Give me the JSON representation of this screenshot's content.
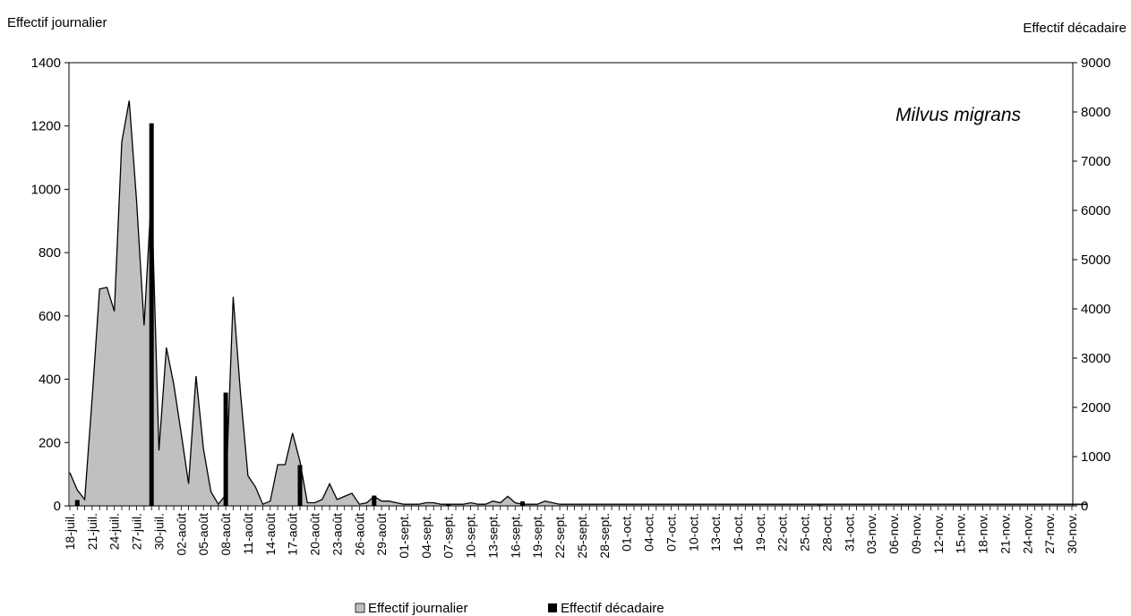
{
  "chart_data": {
    "type": "area",
    "annotation": "Milvus migrans",
    "left_axis_title": "Effectif journalier",
    "right_axis_title": "Effectif décadaire",
    "y_left_range": [
      0,
      1400
    ],
    "y_left_ticks": [
      "0",
      "200",
      "400",
      "600",
      "800",
      "1000",
      "1200",
      "1400"
    ],
    "y_right_range": [
      0,
      9000
    ],
    "y_right_ticks": [
      "0",
      "1000",
      "2000",
      "3000",
      "4000",
      "5000",
      "6000",
      "7000",
      "8000",
      "9000"
    ],
    "x_tick_labels": [
      "18-juil.",
      "21-juil.",
      "24-juil.",
      "27-juil.",
      "30-juil.",
      "02-août",
      "05-août",
      "08-août",
      "11-août",
      "14-août",
      "17-août",
      "20-août",
      "23-août",
      "26-août",
      "29-août",
      "01-sept.",
      "04-sept.",
      "07-sept.",
      "10-sept.",
      "13-sept.",
      "16-sept.",
      "19-sept.",
      "22-sept.",
      "25-sept.",
      "28-sept.",
      "01-oct.",
      "04-oct.",
      "07-oct.",
      "10-oct.",
      "13-oct.",
      "16-oct.",
      "19-oct.",
      "22-oct.",
      "25-oct.",
      "28-oct.",
      "31-oct.",
      "03-nov.",
      "06-nov.",
      "09-nov.",
      "12-nov.",
      "15-nov.",
      "18-nov.",
      "21-nov.",
      "24-nov.",
      "27-nov.",
      "30-nov."
    ],
    "grid": false,
    "legend_position": "bottom",
    "series": [
      {
        "name": "Effectif journalier",
        "axis": "left",
        "kind": "area",
        "color": "#c0c0c0",
        "start_day": "18-juil.",
        "values": [
          105,
          50,
          20,
          340,
          685,
          690,
          615,
          1150,
          1280,
          960,
          570,
          990,
          175,
          500,
          385,
          230,
          70,
          410,
          180,
          45,
          5,
          35,
          660,
          355,
          95,
          60,
          5,
          15,
          130,
          130,
          230,
          140,
          10,
          10,
          20,
          70,
          20,
          30,
          40,
          5,
          10,
          30,
          15,
          15,
          10,
          5,
          5,
          5,
          10,
          10,
          5,
          5,
          5,
          5,
          10,
          5,
          5,
          15,
          10,
          30,
          10,
          5,
          5,
          5,
          15,
          10,
          5,
          5,
          5,
          5,
          5,
          5,
          5,
          5,
          5,
          5,
          5,
          5,
          5,
          5,
          5,
          5,
          5,
          5,
          5,
          5,
          5,
          5,
          5,
          5,
          5,
          5,
          5,
          5,
          5,
          5,
          5,
          5,
          5,
          5,
          5,
          5,
          5,
          5,
          5,
          5,
          5,
          5,
          5,
          5,
          5,
          5,
          5,
          5,
          5,
          5,
          5,
          5,
          5,
          5,
          5,
          5,
          5,
          5,
          5,
          5,
          5,
          5,
          5,
          5,
          5,
          5,
          5,
          5,
          5,
          5,
          5,
          5
        ]
      },
      {
        "name": "Effectif décadaire",
        "axis": "right",
        "kind": "bar",
        "color": "#000000",
        "points": [
          {
            "x": "19-juil.",
            "y": 120
          },
          {
            "x": "29-juil.",
            "y": 7770
          },
          {
            "x": "08-août",
            "y": 2300
          },
          {
            "x": "18-août",
            "y": 830
          },
          {
            "x": "28-août",
            "y": 210
          },
          {
            "x": "07-sept.",
            "y": 25
          },
          {
            "x": "17-sept.",
            "y": 90
          },
          {
            "x": "27-sept.",
            "y": 10
          },
          {
            "x": "07-oct.",
            "y": 5
          },
          {
            "x": "17-oct.",
            "y": 10
          },
          {
            "x": "27-oct.",
            "y": 15
          }
        ]
      }
    ]
  }
}
